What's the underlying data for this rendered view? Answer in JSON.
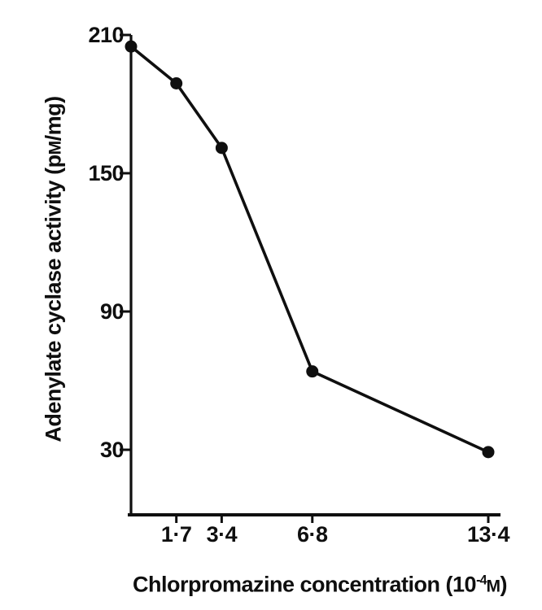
{
  "figure": {
    "background": "#ffffff",
    "ink_color": "#0f0f0f"
  },
  "chart_data": {
    "type": "line",
    "xlabel": "Chlorpromazine concentration (10-4M)",
    "ylabel": "Adenylate cyclase activity (pM/mg)",
    "xlabel_parts": {
      "prefix": "Chlorpromazine concentration (10",
      "exponent": "-4",
      "unit": "M",
      "suffix": ")"
    },
    "ylabel_parts": {
      "prefix": "Adenylate cyclase activity (p",
      "unit": "M",
      "suffix": "/mg)"
    },
    "series": [
      {
        "name": "adenylate-cyclase-activity",
        "x": [
          0,
          1.7,
          3.4,
          6.8,
          13.4
        ],
        "y": [
          205,
          189,
          161,
          64,
          29
        ],
        "marker": "filled-circle",
        "color": "#0f0f0f"
      }
    ],
    "x_ticks": [
      {
        "value": 1.7,
        "label": "1·7"
      },
      {
        "value": 3.4,
        "label": "3·4"
      },
      {
        "value": 6.8,
        "label": "6·8"
      },
      {
        "value": 13.4,
        "label": "13·4"
      }
    ],
    "y_ticks": [
      {
        "value": 210,
        "label": "210"
      },
      {
        "value": 150,
        "label": "150"
      },
      {
        "value": 90,
        "label": "90"
      },
      {
        "value": 30,
        "label": "30"
      }
    ],
    "xlim": [
      0,
      13.9
    ],
    "ylim": [
      0,
      210
    ],
    "grid": false,
    "legend": null
  }
}
